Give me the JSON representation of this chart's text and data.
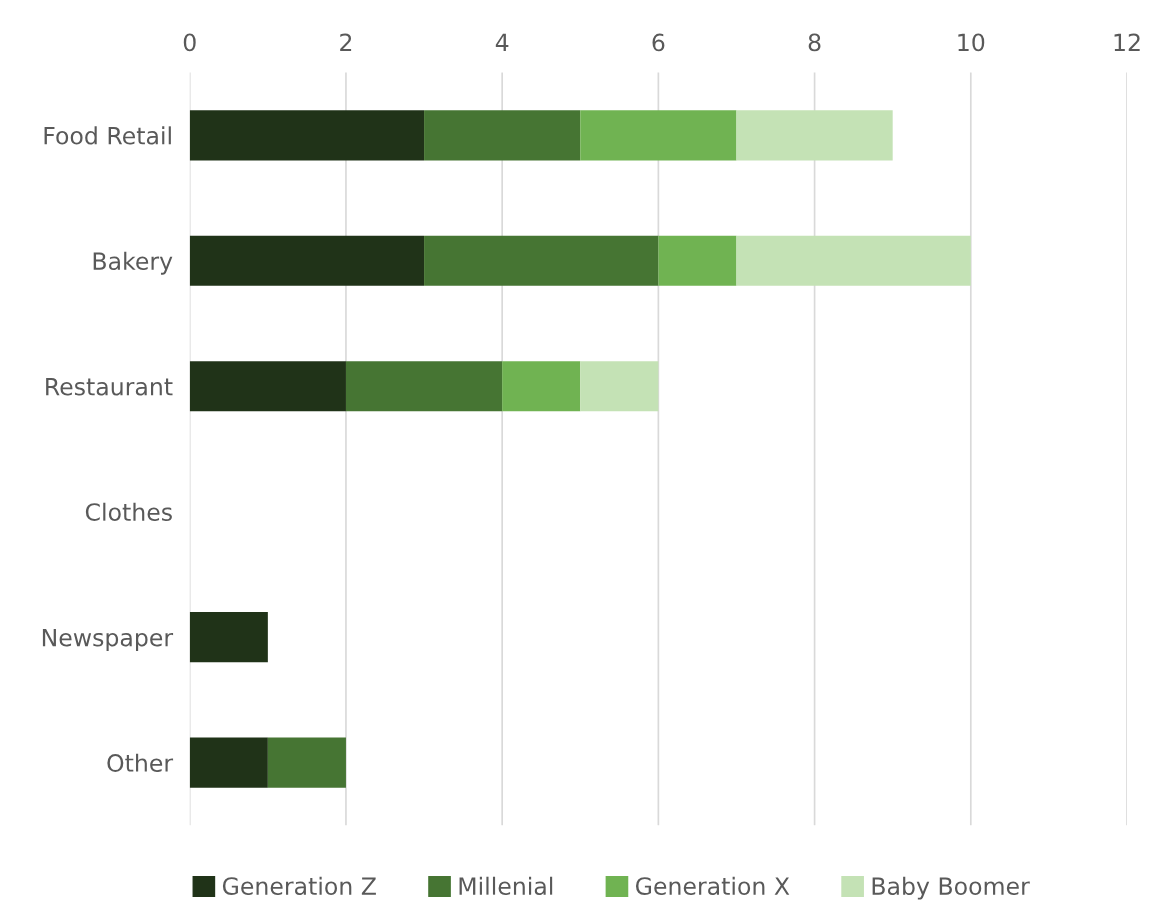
{
  "chart_data": {
    "type": "bar",
    "orientation": "horizontal",
    "stacked": true,
    "categories": [
      "Food Retail",
      "Bakery",
      "Restaurant",
      "Clothes",
      "Newspaper",
      "Other"
    ],
    "series": [
      {
        "name": "Generation Z",
        "color": "#203318",
        "values": [
          3,
          3,
          2,
          0,
          1,
          1
        ]
      },
      {
        "name": "Millenial",
        "color": "#467533",
        "values": [
          2,
          3,
          2,
          0,
          0,
          1
        ]
      },
      {
        "name": "Generation X",
        "color": "#70b352",
        "values": [
          2,
          1,
          1,
          0,
          0,
          0
        ]
      },
      {
        "name": "Baby Boomer",
        "color": "#c4e2b5",
        "values": [
          2,
          3,
          1,
          0,
          0,
          0
        ]
      }
    ],
    "xlim": [
      0,
      12
    ],
    "xticks": [
      0,
      2,
      4,
      6,
      8,
      10,
      12
    ],
    "grid": "x",
    "legend": "bottom"
  }
}
